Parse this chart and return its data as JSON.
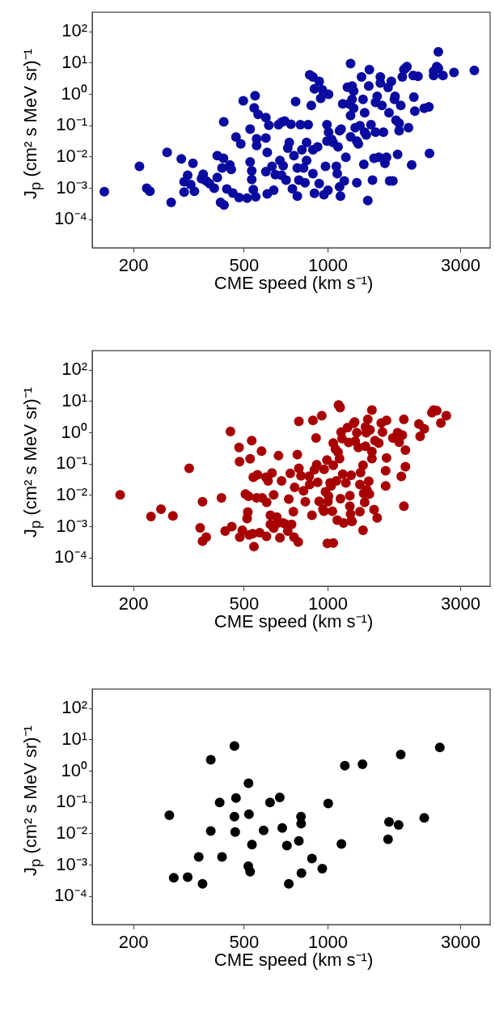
{
  "chart_data": [
    {
      "type": "scatter",
      "xlabel": "CME speed  (km s⁻¹)",
      "ylabel": "J$_{p}$  (cm² s MeV sr)⁻¹",
      "log": "xy",
      "marker": "circle",
      "xlim": [
        142,
        3830
      ],
      "ylim": [
        1.25e-05,
        420
      ],
      "xticks": [
        200,
        500,
        1000,
        3000
      ],
      "yticks": [
        {
          "value": 100,
          "label": "10²"
        },
        {
          "value": 10,
          "label": "10¹"
        },
        {
          "value": 1,
          "label": "10⁰"
        },
        {
          "value": 0.1,
          "label": "10⁻¹"
        },
        {
          "value": 0.01,
          "label": "10⁻²"
        },
        {
          "value": 0.001,
          "label": "10⁻³"
        },
        {
          "value": 0.0001,
          "label": "10⁻⁴"
        }
      ],
      "series": [
        {
          "color": "#0a0aa0",
          "x": [
            157,
            210,
            223,
            229,
            264,
            273,
            297,
            304,
            313,
            304,
            321,
            327,
            331,
            356,
            351,
            365,
            375,
            390,
            400,
            411,
            400,
            421,
            422,
            423,
            416,
            433,
            444,
            449,
            455,
            467,
            479,
            486,
            496,
            512,
            525,
            525,
            532,
            532,
            539,
            547,
            543,
            554,
            561,
            550,
            554,
            598,
            598,
            605,
            613,
            598,
            605,
            629,
            638,
            647,
            664,
            672,
            681,
            690,
            681,
            698,
            707,
            717,
            726,
            736,
            745,
            755,
            765,
            776,
            786,
            776,
            796,
            806,
            817,
            827,
            838,
            838,
            849,
            860,
            883,
            871,
            894,
            883,
            883,
            894,
            918,
            930,
            930,
            942,
            955,
            980,
            992,
            992,
            1005,
            967,
            1005,
            1000,
            1031,
            1044,
            1072,
            1080,
            1087,
            1101,
            1101,
            1109,
            1115,
            1130,
            1145,
            1160,
            1175,
            1191,
            1206,
            1206,
            1206,
            1221,
            1221,
            1237,
            1237,
            1253,
            1270,
            1270,
            1286,
            1303,
            1320,
            1337,
            1355,
            1346,
            1355,
            1373,
            1391,
            1402,
            1409,
            1428,
            1446,
            1465,
            1483,
            1483,
            1503,
            1523,
            1543,
            1543,
            1563,
            1583,
            1603,
            1624,
            1645,
            1658,
            1667,
            1690,
            1712,
            1734,
            1743,
            1757,
            1780,
            1803,
            1803,
            1827,
            1851,
            1875,
            1899,
            1923,
            1948,
            2000,
            2026,
            2037,
            2053,
            2107,
            2220,
            2307,
            2318,
            2399,
            2399,
            2461,
            2494,
            2592,
            2840,
            3360,
            2494
          ],
          "values": [
            0.00077,
            0.005,
            0.001,
            0.0008,
            0.014,
            0.00035,
            0.0086,
            0.00075,
            0.0026,
            0.0016,
            0.0013,
            0.0062,
            0.0008,
            0.0028,
            0.002,
            0.0017,
            0.0014,
            0.001,
            0.011,
            0.00035,
            0.0022,
            0.0091,
            0.133,
            0.00029,
            0.0044,
            0.00094,
            0.0055,
            0.004,
            0.0007,
            0.043,
            0.0005,
            0.026,
            0.62,
            0.00048,
            0.0069,
            0.077,
            0.0036,
            0.0019,
            0.0009,
            0.9,
            0.37,
            0.038,
            0.23,
            0.00053,
            0.023,
            0.18,
            0.04,
            0.014,
            0.102,
            0.0034,
            0.00066,
            0.005,
            0.00086,
            0.0027,
            0.107,
            0.0077,
            0.0026,
            0.0052,
            0.128,
            0.14,
            0.0018,
            0.019,
            0.029,
            0.11,
            0.00096,
            0.011,
            0.59,
            0.0044,
            0.0018,
            0.00056,
            0.107,
            0.017,
            0.0044,
            0.0015,
            0.0077,
            0.029,
            0.107,
            4.2,
            3.6,
            0.44,
            1.5,
            0.017,
            0.0029,
            0.00069,
            0.021,
            0.0014,
            2.6,
            0.74,
            1.4,
            0.005,
            0.107,
            0.032,
            0.062,
            0.00062,
            1.0,
            0.00086,
            0.036,
            0.029,
            0.005,
            0.0029,
            0.021,
            0.069,
            0.0011,
            0.00056,
            0.077,
            0.5,
            0.0017,
            0.0097,
            1.7,
            0.5,
            9.6,
            0.21,
            0.044,
            0.69,
            1.85,
            1.27,
            0.36,
            0.086,
            0.032,
            0.0015,
            0.026,
            0.1,
            3.6,
            0.69,
            0.26,
            0.0058,
            0.062,
            0.05,
            0.0004,
            1.85,
            6.2,
            0.107,
            0.0018,
            0.0091,
            0.55,
            0.062,
            0.86,
            0.0097,
            3.6,
            2.3,
            0.44,
            0.062,
            0.0062,
            0.0097,
            1.66,
            0.26,
            0.0017,
            2.6,
            0.0017,
            0.69,
            0.86,
            0.148,
            0.012,
            0.119,
            0.069,
            0.44,
            3.6,
            6.2,
            6.9,
            7.7,
            0.086,
            0.0055,
            4.0,
            0.82,
            0.29,
            3.8,
            0.36,
            0.4,
            0.013,
            5.5,
            4.0,
            7.7,
            6.9,
            4.0,
            5.0,
            5.8,
            23
          ]
        }
      ]
    },
    {
      "type": "scatter",
      "xlabel": "CME speed  (km s⁻¹)",
      "ylabel": "J$_{p}$  (cm² s MeV sr)⁻¹",
      "log": "xy",
      "marker": "circle",
      "xlim": [
        142,
        3830
      ],
      "ylim": [
        1.25e-05,
        420
      ],
      "xticks": [
        200,
        500,
        1000,
        3000
      ],
      "yticks": [
        {
          "value": 100,
          "label": "10²"
        },
        {
          "value": 10,
          "label": "10¹"
        },
        {
          "value": 1,
          "label": "10⁰"
        },
        {
          "value": 0.1,
          "label": "10⁻¹"
        },
        {
          "value": 0.01,
          "label": "10⁻²"
        },
        {
          "value": 0.001,
          "label": "10⁻³"
        },
        {
          "value": 0.0001,
          "label": "10⁻⁴"
        }
      ],
      "series": [
        {
          "color": "#a80000",
          "x": [
            179,
            231,
            251,
            277,
            317,
            347,
            354,
            354,
            365,
            414,
            427,
            446,
            451,
            479,
            481,
            482,
            492,
            505,
            512,
            515,
            518,
            525,
            532,
            521,
            539,
            542,
            554,
            558,
            536,
            568,
            577,
            580,
            598,
            602,
            601,
            609,
            621,
            621,
            629,
            638,
            638,
            655,
            660,
            664,
            672,
            681,
            690,
            707,
            717,
            723,
            732,
            740,
            751,
            755,
            759,
            776,
            782,
            786,
            786,
            800,
            817,
            829,
            856,
            860,
            876,
            883,
            894,
            906,
            911,
            918,
            930,
            950,
            959,
            967,
            969,
            980,
            992,
            995,
            1000,
            1005,
            1018,
            1026,
            1045,
            1037,
            1045,
            1045,
            1064,
            1072,
            1080,
            1087,
            1092,
            1101,
            1106,
            1109,
            1115,
            1130,
            1124,
            1139,
            1160,
            1175,
            1187,
            1199,
            1199,
            1206,
            1212,
            1212,
            1221,
            1237,
            1247,
            1253,
            1270,
            1286,
            1303,
            1310,
            1303,
            1337,
            1337,
            1344,
            1355,
            1365,
            1365,
            1373,
            1380,
            1391,
            1402,
            1409,
            1417,
            1439,
            1439,
            1439,
            1465,
            1476,
            1503,
            1523,
            1555,
            1571,
            1612,
            1624,
            1624,
            1612,
            1712,
            1780,
            1803,
            1836,
            1851,
            1875,
            1875,
            1899,
            1899,
            2123,
            2145,
            2220,
            2365,
            2399,
            2461,
            2547,
            2665
          ],
          "values": [
            0.0104,
            0.0021,
            0.0036,
            0.0022,
            0.073,
            0.00091,
            0.0062,
            0.00034,
            0.00046,
            0.0083,
            0.00072,
            1.09,
            0.001,
            0.34,
            0.12,
            0.00046,
            0.00076,
            0.011,
            0.0018,
            0.0029,
            0.0093,
            0.147,
            0.56,
            0.00054,
            0.038,
            0.00023,
            0.0083,
            0.045,
            0.00059,
            0.00064,
            0.26,
            0.0083,
            0.038,
            0.006,
            0.00049,
            0.029,
            0.0023,
            0.00117,
            0.052,
            0.0104,
            0.0009,
            0.002,
            0.0013,
            0.185,
            0.00044,
            0.029,
            0.0013,
            0.00117,
            0.00072,
            0.0076,
            0.05,
            0.00117,
            0.003,
            0.00046,
            0.018,
            0.2,
            0.00032,
            2.3,
            0.073,
            0.042,
            0.014,
            0.0062,
            0.041,
            0.022,
            0.0023,
            2.5,
            0.066,
            0.68,
            0.095,
            0.026,
            0.0064,
            3.5,
            0.0036,
            0.0031,
            0.068,
            0.0129,
            0.135,
            0.00029,
            0.0062,
            0.0093,
            0.025,
            0.02,
            0.091,
            0.0031,
            0.0003,
            0.47,
            0.3,
            0.029,
            0.0016,
            0.24,
            7.7,
            0.15,
            6.4,
            0.0078,
            1.05,
            0.047,
            0.65,
            0.0013,
            0.025,
            1.45,
            0.49,
            0.0098,
            0.0045,
            0.0025,
            0.0015,
            0.044,
            0.00146,
            2.0,
            2.2,
            0.54,
            1.0,
            0.337,
            0.022,
            0.053,
            0.003,
            0.091,
            0.00076,
            0.0115,
            0.006,
            0.37,
            1.55,
            1.0,
            0.015,
            2.7,
            0.028,
            0.011,
            1.24,
            5.3,
            0.25,
            0.15,
            0.0035,
            0.56,
            0.0019,
            0.47,
            2.05,
            1.05,
            0.061,
            0.157,
            2.5,
            0.02,
            0.68,
            1.0,
            0.5,
            0.04,
            0.84,
            2.7,
            0.0045,
            0.082,
            0.28,
            1.9,
            0.77,
            1.33,
            4.4,
            5.3,
            5.1,
            2.05,
            3.5
          ]
        }
      ]
    },
    {
      "type": "scatter",
      "xlabel": "CME speed  (km s⁻¹)",
      "ylabel": "J$_{p}$  (cm² s MeV sr)⁻¹",
      "log": "xy",
      "marker": "circle",
      "xlim": [
        142,
        3830
      ],
      "ylim": [
        1.25e-05,
        420
      ],
      "xticks": [
        200,
        500,
        1000,
        3000
      ],
      "yticks": [
        {
          "value": 100,
          "label": "10²"
        },
        {
          "value": 10,
          "label": "10¹"
        },
        {
          "value": 1,
          "label": "10⁰"
        },
        {
          "value": 0.1,
          "label": "10⁻¹"
        },
        {
          "value": 0.01,
          "label": "10⁻²"
        },
        {
          "value": 0.001,
          "label": "10⁻³"
        },
        {
          "value": 0.0001,
          "label": "10⁻⁴"
        }
      ],
      "series": [
        {
          "color": "#000000",
          "x": [
            269,
            279,
            313,
            343,
            354,
            379,
            379,
            408,
            416,
            461,
            461,
            464,
            467,
            518,
            520,
            517,
            525,
            533,
            587,
            619,
            671,
            685,
            712,
            723,
            786,
            800,
            801,
            803,
            876,
            954,
            1002,
            1118,
            1150,
            1331,
            1645,
            1658,
            1795,
            1827,
            2220,
            2525
          ],
          "values": [
            0.039,
            0.00039,
            0.00041,
            0.0018,
            0.00025,
            2.3,
            0.0122,
            0.099,
            0.0018,
            6.4,
            0.035,
            0.0114,
            0.138,
            0.41,
            0.042,
            0.00091,
            0.00061,
            0.0045,
            0.0127,
            0.099,
            0.144,
            0.0152,
            0.0042,
            0.00025,
            0.0059,
            0.035,
            0.021,
            0.00055,
            0.0016,
            0.00076,
            0.093,
            0.0047,
            1.49,
            1.66,
            0.0066,
            0.024,
            0.019,
            3.4,
            0.032,
            5.7
          ]
        }
      ]
    }
  ]
}
